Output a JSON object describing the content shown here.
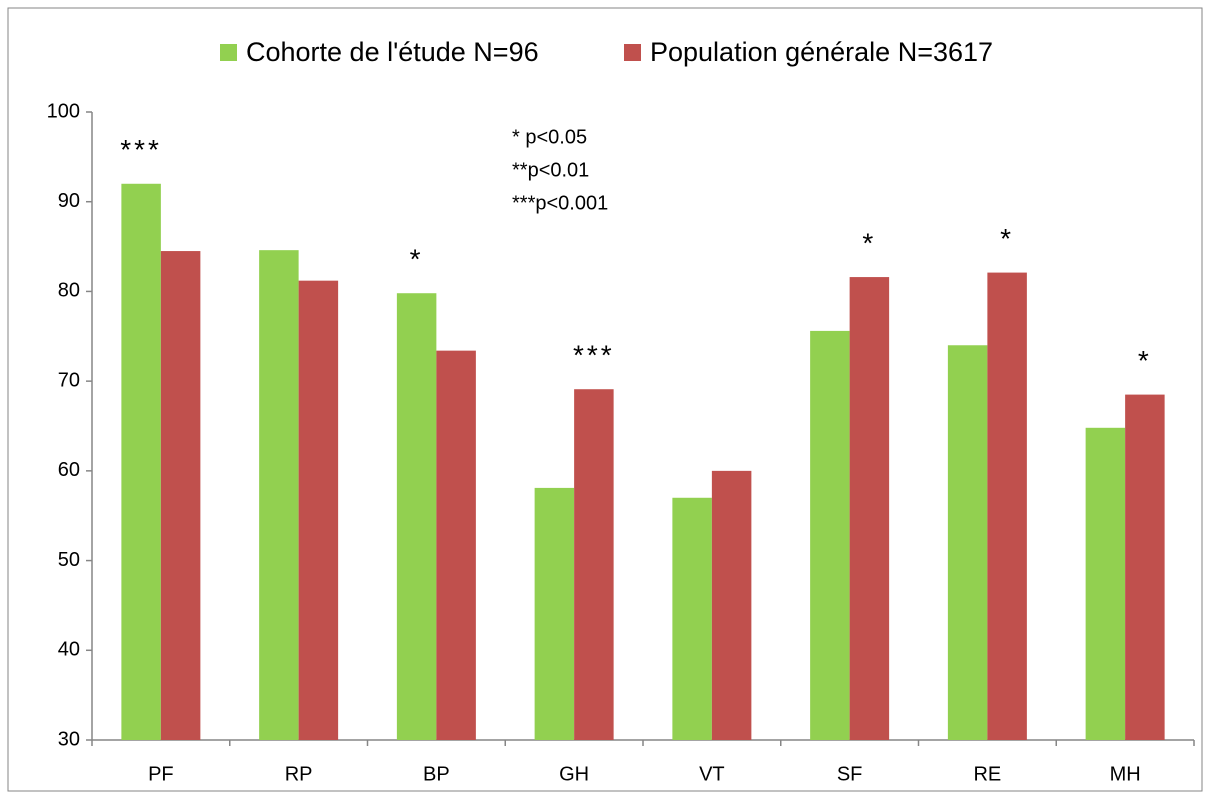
{
  "chart_data": {
    "type": "bar",
    "categories": [
      "PF",
      "RP",
      "BP",
      "GH",
      "VT",
      "SF",
      "RE",
      "MH"
    ],
    "series": [
      {
        "name": "Cohorte de l'étude N=96",
        "color": "#92d050",
        "values": [
          92,
          84.6,
          79.8,
          58.1,
          57,
          75.6,
          74,
          64.8
        ]
      },
      {
        "name": "Population générale N=3617",
        "color": "#c0504d",
        "values": [
          84.5,
          81.2,
          73.4,
          69.1,
          60,
          81.6,
          82.1,
          68.5
        ]
      }
    ],
    "significance": [
      "***",
      null,
      "*",
      "***",
      null,
      "*",
      "*",
      "*"
    ],
    "notes": [
      "* p<0.05",
      "**p<0.01",
      "***p<0.001"
    ],
    "ylim": [
      30,
      100
    ],
    "yticks": [
      30,
      40,
      50,
      60,
      70,
      80,
      90,
      100
    ],
    "grid": false,
    "legend": "top"
  }
}
